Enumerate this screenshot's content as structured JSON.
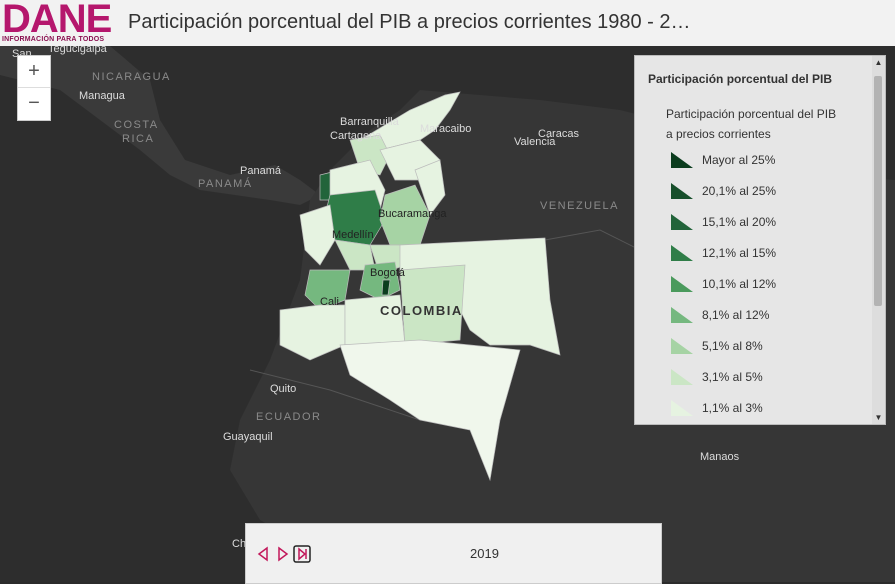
{
  "header": {
    "logo_text": "DANE",
    "logo_tagline": "INFORMACIÓN PARA TODOS",
    "title": "Participación porcentual del PIB a precios corrientes 1980 - 2…"
  },
  "zoom": {
    "in": "+",
    "out": "−"
  },
  "legend": {
    "title": "Participación porcentual del PIB",
    "subtitle": "Participación porcentual del PIB a precios corrientes",
    "items": [
      {
        "label": "Mayor al 25%",
        "color": "#0b3d1e"
      },
      {
        "label": "20,1% al 25%",
        "color": "#174f2b"
      },
      {
        "label": "15,1% al 20%",
        "color": "#22643a"
      },
      {
        "label": "12,1% al 15%",
        "color": "#2f7d48"
      },
      {
        "label": "10,1% al 12%",
        "color": "#4a9a5c"
      },
      {
        "label": "8,1% al 12%",
        "color": "#75b87f"
      },
      {
        "label": "5,1% al 8%",
        "color": "#a6d3a4"
      },
      {
        "label": "3,1% al 5%",
        "color": "#cbe6c5"
      },
      {
        "label": "1,1% al 3%",
        "color": "#e6f3e1"
      }
    ]
  },
  "map_labels": {
    "cities": [
      "San",
      "Tegucigalpa",
      "Managua",
      "Panamá",
      "Barranquilla",
      "Cartagena",
      "Maracaibo",
      "Caracas",
      "Valencia",
      "Medellín",
      "Bucaramanga",
      "Bogotá",
      "Cali",
      "Quito",
      "Guayaquil",
      "Manaos",
      "Ch"
    ],
    "countries": [
      "NICARAGUA",
      "COSTA",
      "RICA",
      "PANAMÁ",
      "VENEZUELA",
      "ECUADOR"
    ],
    "colombia": "COLOMBIA"
  },
  "timebar": {
    "year": "2019"
  }
}
